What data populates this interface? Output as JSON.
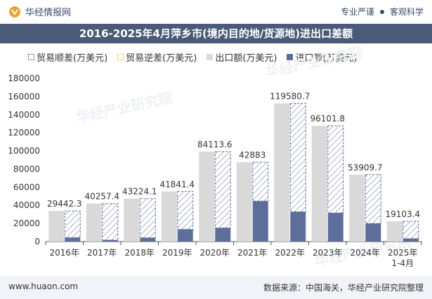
{
  "header": {
    "brand": "华经情报网",
    "tag1": "专业严谨",
    "tag2": "客观科学"
  },
  "title": "2016-2025年4月萍乡市(境内目的地/货源地)进出口差额",
  "legend": {
    "surplus": "贸易顺差(万美元)",
    "deficit": "贸易逆差(万美元)",
    "export": "出口额(万美元)",
    "import": "进口额(万美元)"
  },
  "colors": {
    "export": "#d9d9d9",
    "import": "#5d6e9a",
    "surplus_stroke": "#5d6e9a",
    "deficit_stroke": "#f0c040",
    "title_bg": "#4b5a78"
  },
  "chart_data": {
    "type": "bar",
    "categories": [
      "2016年",
      "2017年",
      "2018年",
      "2019年",
      "2020年",
      "2021年",
      "2022年",
      "2023年",
      "2024年",
      "2025年\n1-4月"
    ],
    "series": [
      {
        "name": "出口额(万美元)",
        "values": [
          33900,
          42000,
          47400,
          55300,
          99200,
          87600,
          152500,
          127700,
          73900,
          22400
        ]
      },
      {
        "name": "进口额(万美元)",
        "values": [
          4400,
          1700,
          4200,
          13500,
          15100,
          44700,
          32900,
          31600,
          20000,
          3300
        ]
      },
      {
        "name": "贸易顺差(万美元)",
        "values": [
          29442.3,
          40257.4,
          43224.1,
          41841.4,
          84113.6,
          42883,
          119580.7,
          96101.8,
          53909.7,
          19103.4
        ]
      }
    ],
    "data_labels": [
      "29442.3",
      "40257.4",
      "43224.1",
      "41841.4",
      "84113.6",
      "42883",
      "119580.7",
      "96101.8",
      "53909.7",
      "19103.4"
    ],
    "ylim": [
      0,
      180000
    ],
    "yticks": [
      0,
      20000,
      40000,
      60000,
      80000,
      100000,
      120000,
      140000,
      160000,
      180000
    ],
    "grid": false,
    "legend_position": "top-left"
  },
  "watermark": "华经产业研究院",
  "footer": {
    "website": "www.huaon.com",
    "source": "数据来源：中国海关，华经产业研究院整理"
  }
}
